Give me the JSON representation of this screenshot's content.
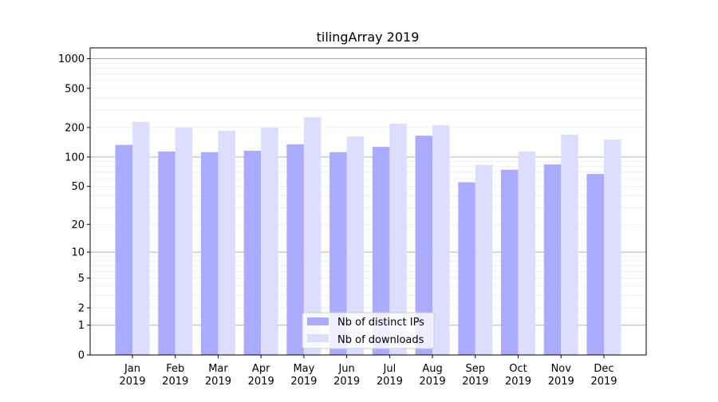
{
  "chart_data": {
    "type": "bar",
    "title": "tilingArray 2019",
    "xlabel": "",
    "ylabel": "",
    "yscale": "log(1+y)",
    "ylim": [
      0,
      1300
    ],
    "yticks": [
      0,
      1,
      2,
      5,
      10,
      20,
      50,
      100,
      200,
      500,
      1000
    ],
    "grid": true,
    "legend_position": "bottom-center",
    "categories": [
      "Jan\n2019",
      "Feb\n2019",
      "Mar\n2019",
      "Apr\n2019",
      "May\n2019",
      "Jun\n2019",
      "Jul\n2019",
      "Aug\n2019",
      "Sep\n2019",
      "Oct\n2019",
      "Nov\n2019",
      "Dec\n2019"
    ],
    "series": [
      {
        "name": "Nb of distinct IPs",
        "color": "#aaaaff",
        "values": [
          133,
          114,
          112,
          116,
          135,
          112,
          127,
          165,
          55,
          74,
          84,
          67
        ]
      },
      {
        "name": "Nb of downloads",
        "color": "#ddddff",
        "values": [
          228,
          201,
          185,
          201,
          254,
          162,
          219,
          211,
          83,
          114,
          169,
          151
        ]
      }
    ]
  }
}
